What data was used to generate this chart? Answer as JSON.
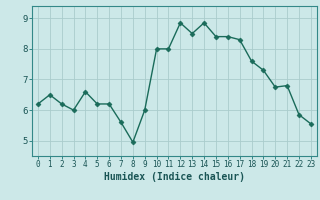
{
  "x": [
    0,
    1,
    2,
    3,
    4,
    5,
    6,
    7,
    8,
    9,
    10,
    11,
    12,
    13,
    14,
    15,
    16,
    17,
    18,
    19,
    20,
    21,
    22,
    23
  ],
  "y": [
    6.2,
    6.5,
    6.2,
    6.0,
    6.6,
    6.2,
    6.2,
    5.6,
    4.95,
    6.0,
    8.0,
    8.0,
    8.85,
    8.5,
    8.85,
    8.4,
    8.4,
    8.3,
    7.6,
    7.3,
    6.75,
    6.8,
    5.85,
    5.55
  ],
  "line_color": "#1a6b5a",
  "marker": "D",
  "marker_size": 2.5,
  "bg_color": "#cce8e8",
  "grid_color": "#aacccc",
  "xlabel": "Humidex (Indice chaleur)",
  "xlim": [
    -0.5,
    23.5
  ],
  "ylim": [
    4.5,
    9.4
  ],
  "yticks": [
    5,
    6,
    7,
    8,
    9
  ],
  "xticks": [
    0,
    1,
    2,
    3,
    4,
    5,
    6,
    7,
    8,
    9,
    10,
    11,
    12,
    13,
    14,
    15,
    16,
    17,
    18,
    19,
    20,
    21,
    22,
    23
  ],
  "xlabel_fontsize": 7.0,
  "ytick_fontsize": 6.5,
  "xtick_fontsize": 5.5,
  "line_width": 1.0,
  "spine_color": "#338888",
  "tick_color": "#338888",
  "label_color": "#1a5555"
}
